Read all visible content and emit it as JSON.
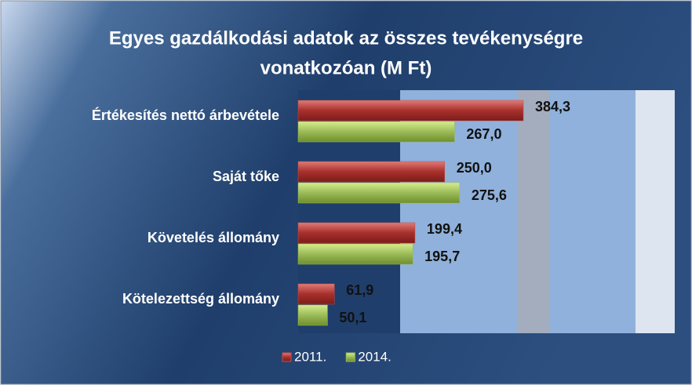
{
  "chart_data": {
    "type": "bar",
    "orientation": "horizontal",
    "title": "Egyes gazdálkodási adatok az összes tevékenységre vonatkozóan (M Ft)",
    "title_lines": [
      "Egyes gazdálkodási adatok az összes tevékenységre",
      "vonatkozóan (M Ft)"
    ],
    "categories": [
      "Értékesítés nettó árbevétele",
      "Saját tőke",
      "Követelés állomány",
      "Kötelezettség állomány"
    ],
    "series": [
      {
        "name": "2011.",
        "color": "#c0504d",
        "values": [
          384.3,
          250.0,
          199.4,
          61.9
        ],
        "value_labels": [
          "384,3",
          "250,0",
          "199,4",
          "61,9"
        ]
      },
      {
        "name": "2014.",
        "color": "#9bbb59",
        "values": [
          267.0,
          275.6,
          195.7,
          50.1
        ],
        "value_labels": [
          "267,0",
          "275,6",
          "195,7",
          "50,1"
        ]
      }
    ],
    "xlim": [
      0,
      640
    ],
    "legend": "bottom"
  }
}
